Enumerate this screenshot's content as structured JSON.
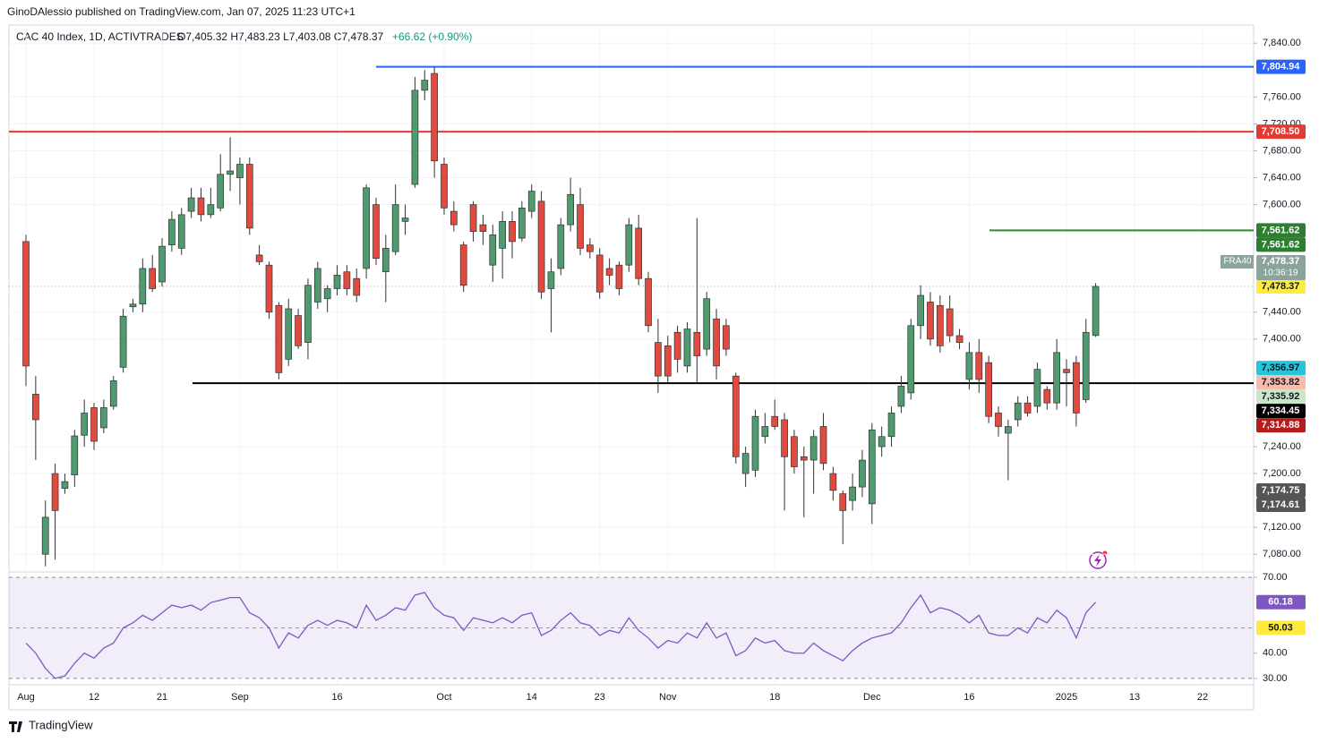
{
  "header": {
    "published": "GinoDAlessio published on TradingView.com, Jan 07, 2025 11:23 UTC+1",
    "brand": "TradingView"
  },
  "chart_data": {
    "type": "candlestick",
    "title": "CAC 40 Index, 1D, ACTIVTRADES",
    "ohlc_text": "O7,405.32  H7,483.23  L7,403.08  C7,478.37",
    "change_text": "+66.62 (+0.90%)",
    "up_color": "#4f9a6e",
    "down_color": "#e04a3f",
    "categories": [
      "Aug",
      null,
      null,
      null,
      null,
      null,
      null,
      "12",
      null,
      null,
      null,
      null,
      null,
      null,
      "21",
      null,
      null,
      null,
      null,
      null,
      null,
      null,
      "Sep",
      null,
      null,
      null,
      null,
      null,
      null,
      null,
      null,
      null,
      "16",
      null,
      null,
      null,
      null,
      null,
      null,
      null,
      null,
      null,
      null,
      "Oct",
      null,
      null,
      null,
      null,
      null,
      null,
      null,
      null,
      "14",
      null,
      null,
      null,
      null,
      null,
      null,
      "23",
      null,
      null,
      null,
      null,
      null,
      null,
      "Nov",
      null,
      null,
      null,
      null,
      null,
      null,
      null,
      null,
      null,
      null,
      "18",
      null,
      null,
      null,
      null,
      null,
      null,
      null,
      null,
      null,
      "Dec",
      null,
      null,
      null,
      null,
      null,
      null,
      null,
      null,
      null,
      "16",
      null,
      null,
      null,
      null,
      null,
      null,
      null,
      null,
      null,
      "2025",
      null,
      null,
      null,
      null,
      null,
      null,
      "13",
      null,
      null,
      null,
      null,
      null,
      null,
      "22",
      null,
      null,
      null,
      null
    ],
    "open": [
      7545,
      7318,
      7080,
      7200,
      7178,
      7198,
      7257,
      7298,
      7268,
      7300,
      7358,
      7448,
      7452,
      7505,
      7485,
      7540,
      7535,
      7590,
      7610,
      7585,
      7595,
      7645,
      7640,
      7660,
      7525,
      7510,
      7450,
      7370,
      7435,
      7395,
      7455,
      7460,
      7475,
      7500,
      7490,
      7505,
      7600,
      7500,
      7530,
      7575,
      7630,
      7770,
      7795,
      7660,
      7590,
      7540,
      7600,
      7570,
      7510,
      7535,
      7575,
      7550,
      7590,
      7605,
      7475,
      7505,
      7570,
      7600,
      7540,
      7525,
      7505,
      7510,
      7510,
      7565,
      7490,
      7395,
      7390,
      7410,
      7360,
      7410,
      7385,
      7430,
      7420,
      7345,
      7200,
      7205,
      7255,
      7285,
      7280,
      7255,
      7225,
      7220,
      7270,
      7200,
      7170,
      7160,
      7180,
      7155,
      7240,
      7255,
      7300,
      7320,
      7420,
      7455,
      7450,
      7445,
      7405,
      7340,
      7380,
      7365,
      7290,
      7260,
      7280,
      7305,
      7300,
      7325,
      7305,
      7355,
      7365,
      7310,
      7405.32,
      null,
      null,
      null,
      null,
      null,
      null,
      null,
      null,
      null,
      null,
      null,
      null,
      null,
      null,
      null
    ],
    "high": [
      7555,
      7345,
      7160,
      7215,
      7200,
      7265,
      7310,
      7305,
      7310,
      7345,
      7445,
      7460,
      7520,
      7525,
      7550,
      7590,
      7595,
      7625,
      7625,
      7625,
      7675,
      7700,
      7670,
      7670,
      7540,
      7515,
      7455,
      7460,
      7445,
      7490,
      7515,
      7480,
      7510,
      7510,
      7505,
      7630,
      7610,
      7555,
      7630,
      7600,
      7790,
      7800,
      7805,
      7670,
      7605,
      7545,
      7605,
      7585,
      7570,
      7590,
      7590,
      7605,
      7630,
      7620,
      7520,
      7580,
      7640,
      7625,
      7550,
      7535,
      7520,
      7515,
      7580,
      7585,
      7500,
      7430,
      7405,
      7420,
      7425,
      7580,
      7470,
      7445,
      7430,
      7350,
      7240,
      7295,
      7290,
      7310,
      7290,
      7265,
      7240,
      7265,
      7290,
      7210,
      7175,
      7200,
      7235,
      7275,
      7270,
      7300,
      7345,
      7430,
      7480,
      7470,
      7465,
      7465,
      7415,
      7395,
      7400,
      7375,
      7300,
      7280,
      7315,
      7315,
      7365,
      7330,
      7400,
      7370,
      7375,
      7430,
      7483.23,
      null,
      null,
      null,
      null,
      null,
      null,
      null,
      null,
      null,
      null,
      null,
      null,
      null,
      null,
      null
    ],
    "low": [
      7330,
      7220,
      7062,
      7072,
      7170,
      7180,
      7240,
      7235,
      7260,
      7295,
      7350,
      7440,
      7440,
      7470,
      7478,
      7530,
      7525,
      7580,
      7575,
      7580,
      7590,
      7620,
      7600,
      7555,
      7510,
      7430,
      7340,
      7360,
      7385,
      7370,
      7445,
      7440,
      7465,
      7465,
      7455,
      7490,
      7510,
      7455,
      7525,
      7555,
      7625,
      7755,
      7640,
      7585,
      7560,
      7470,
      7545,
      7540,
      7485,
      7490,
      7520,
      7545,
      7580,
      7460,
      7410,
      7495,
      7560,
      7525,
      7520,
      7460,
      7480,
      7465,
      7500,
      7480,
      7410,
      7320,
      7335,
      7350,
      7350,
      7335,
      7375,
      7340,
      7375,
      7215,
      7180,
      7195,
      7245,
      7265,
      7145,
      7200,
      7135,
      7170,
      7205,
      7160,
      7095,
      7145,
      7165,
      7125,
      7225,
      7240,
      7290,
      7310,
      7400,
      7390,
      7380,
      7395,
      7385,
      7325,
      7320,
      7275,
      7255,
      7190,
      7270,
      7285,
      7290,
      7295,
      7295,
      7300,
      7270,
      7305,
      7403.08,
      null,
      null,
      null,
      null,
      null,
      null,
      null,
      null,
      null,
      null,
      null,
      null,
      null,
      null,
      null
    ],
    "close": [
      7360,
      7280,
      7135,
      7145,
      7188,
      7256,
      7290,
      7248,
      7298,
      7338,
      7434,
      7452,
      7505,
      7475,
      7538,
      7578,
      7585,
      7610,
      7585,
      7600,
      7645,
      7650,
      7660,
      7565,
      7515,
      7440,
      7350,
      7445,
      7390,
      7480,
      7505,
      7475,
      7495,
      7475,
      7465,
      7625,
      7520,
      7535,
      7600,
      7580,
      7770,
      7785,
      7665,
      7595,
      7570,
      7480,
      7560,
      7560,
      7555,
      7575,
      7545,
      7595,
      7620,
      7470,
      7500,
      7570,
      7615,
      7535,
      7530,
      7470,
      7495,
      7475,
      7570,
      7490,
      7420,
      7345,
      7345,
      7370,
      7415,
      7375,
      7460,
      7360,
      7385,
      7225,
      7230,
      7285,
      7270,
      7270,
      7225,
      7210,
      7220,
      7255,
      7215,
      7175,
      7145,
      7180,
      7220,
      7265,
      7255,
      7290,
      7330,
      7420,
      7465,
      7400,
      7390,
      7405,
      7395,
      7380,
      7340,
      7285,
      7270,
      7270,
      7305,
      7290,
      7355,
      7305,
      7380,
      7350,
      7290,
      7410,
      7478.37,
      null,
      null,
      null,
      null,
      null,
      null,
      null,
      null,
      null,
      null,
      null,
      null,
      null,
      null,
      null
    ],
    "ylim": [
      7055,
      7867
    ],
    "yticks": [
      {
        "value": 7840,
        "label": "7,840.00"
      },
      {
        "value": 7760,
        "label": "7,760.00"
      },
      {
        "value": 7720,
        "label": "7,720.00"
      },
      {
        "value": 7680,
        "label": "7,680.00"
      },
      {
        "value": 7640,
        "label": "7,640.00"
      },
      {
        "value": 7600,
        "label": "7,600.00"
      },
      {
        "value": 7440,
        "label": "7,440.00"
      },
      {
        "value": 7400,
        "label": "7,400.00"
      },
      {
        "value": 7240,
        "label": "7,240.00"
      },
      {
        "value": 7200,
        "label": "7,200.00"
      },
      {
        "value": 7120,
        "label": "7,120.00"
      },
      {
        "value": 7080,
        "label": "7,080.00"
      }
    ],
    "grid": true,
    "levels": [
      {
        "value": 7804.94,
        "color": "#2962ff"
      },
      {
        "value": 7708.5,
        "color": "#e53935"
      },
      {
        "value": 7561.62,
        "color": "#2e8b2e"
      },
      {
        "value": 7334.45,
        "color": "#000000"
      }
    ],
    "price_labels": [
      {
        "value": 7804.94,
        "label": "7,804.94",
        "color": "#2962ff",
        "text_color": "#ffffff"
      },
      {
        "value": 7708.5,
        "label": "7,708.50",
        "color": "#e53935",
        "text_color": "#ffffff"
      },
      {
        "value": 7561.62,
        "label": "7,561.62",
        "color": "#2e7d32",
        "text_color": "#ffffff"
      },
      {
        "value": 7561.62,
        "label": "7,561.62",
        "color": "#2e7d32",
        "text_color": "#ffffff"
      },
      {
        "value": 7478.37,
        "label": "7,478.37",
        "color": "#ffeb3b",
        "text_color": "#131722"
      },
      {
        "value": 7356.97,
        "label": "7,356.97",
        "color": "#26c6da",
        "text_color": "#131722"
      },
      {
        "value": 7353.82,
        "label": "7,353.82",
        "color": "#f8bbb0",
        "text_color": "#131722"
      },
      {
        "value": 7335.92,
        "label": "7,335.92",
        "color": "#c8e6c9",
        "text_color": "#131722"
      },
      {
        "value": 7334.45,
        "label": "7,334.45",
        "color": "#000000",
        "text_color": "#ffffff"
      },
      {
        "value": 7314.88,
        "label": "7,314.88",
        "color": "#b71c1c",
        "text_color": "#ffffff"
      },
      {
        "value": 7174.75,
        "label": "7,174.75",
        "color": "#555555",
        "text_color": "#ffffff"
      },
      {
        "value": 7174.61,
        "label": "7,174.61",
        "color": "#555555",
        "text_color": "#ffffff"
      }
    ],
    "symbol_badge": {
      "name": "FRA40",
      "value": 7478.37,
      "label": "7,478.37",
      "countdown": "10:36:19",
      "color": "#8aa39b"
    },
    "rsi": {
      "color": "#7e57c2",
      "values": [
        44,
        40,
        34,
        30,
        31,
        36,
        40,
        38,
        42,
        44,
        50,
        52,
        55,
        53,
        56,
        59,
        58,
        59,
        57,
        60,
        61,
        62,
        62,
        56,
        54,
        50,
        42,
        48,
        46,
        51,
        53,
        51,
        53,
        52,
        50,
        59,
        53,
        55,
        58,
        57,
        63,
        64,
        58,
        55,
        54,
        49,
        54,
        53,
        52,
        54,
        52,
        55,
        56,
        47,
        49,
        53,
        56,
        52,
        51,
        47,
        49,
        48,
        54,
        49,
        46,
        42,
        45,
        44,
        48,
        46,
        52,
        46,
        48,
        39,
        41,
        46,
        44,
        45,
        41,
        40,
        40,
        44,
        41,
        39,
        37,
        41,
        44,
        46,
        47,
        48,
        52,
        58,
        63,
        56,
        58,
        57,
        55,
        52,
        55,
        48,
        47,
        47,
        50,
        48,
        54,
        52,
        57,
        54,
        46,
        56,
        60.18,
        null,
        null,
        null,
        null,
        null,
        null,
        null,
        null,
        null,
        null,
        null,
        null,
        null,
        null,
        null
      ],
      "ylim": [
        27.5,
        71.8
      ],
      "yticks": [
        {
          "value": 70,
          "label": "70.00"
        },
        {
          "value": 40,
          "label": "40.00"
        },
        {
          "value": 30,
          "label": "30.00"
        }
      ],
      "levels": [
        70,
        50,
        30
      ],
      "badges": [
        {
          "value": 60.18,
          "label": "60.18",
          "color": "#7e57c2",
          "text_color": "#ffffff"
        },
        {
          "value": 50.03,
          "label": "50.03",
          "color": "#ffeb3b",
          "text_color": "#131722"
        }
      ]
    }
  }
}
